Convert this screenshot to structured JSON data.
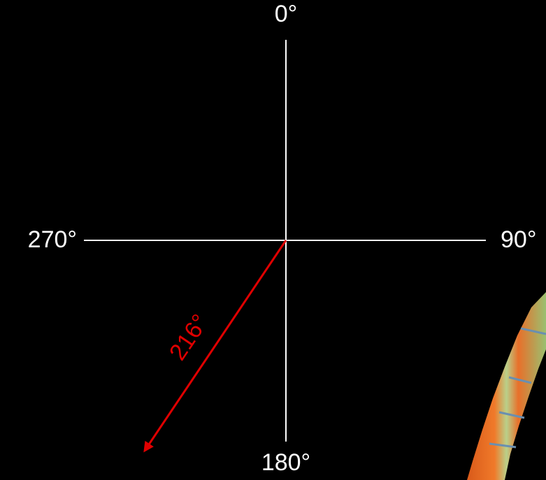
{
  "axes": {
    "top": "0°",
    "right": "90°",
    "bottom": "180°",
    "left": "270°"
  },
  "arrow": {
    "label": "216°"
  }
}
